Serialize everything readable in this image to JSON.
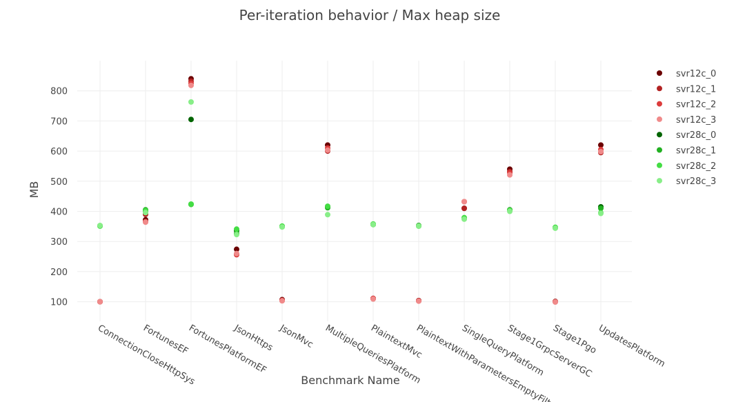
{
  "chart_data": {
    "type": "scatter",
    "title": "Per-iteration behavior / Max heap size",
    "xlabel": "Benchmark Name",
    "ylabel": "MB",
    "ylim": [
      35,
      900
    ],
    "yticks": [
      100,
      200,
      300,
      400,
      500,
      600,
      700,
      800
    ],
    "categories": [
      "ConnectionCloseHttpSys",
      "FortunesEF",
      "FortunesPlatformEF",
      "JsonHttps",
      "JsonMvc",
      "MultipleQueriesPlatform",
      "PlaintextMvc",
      "PlaintextWithParametersEmptyFilter",
      "SingleQueryPlatform",
      "Stage1GrpcServerGC",
      "Stage1Pgo",
      "UpdatesPlatform"
    ],
    "grid": true,
    "legend_position": "top-right",
    "series": [
      {
        "name": "svr12c_0",
        "color": "#6b0000",
        "values": [
          100,
          372,
          840,
          274,
          107,
          620,
          111,
          104,
          410,
          540,
          101,
          620
        ]
      },
      {
        "name": "svr12c_1",
        "color": "#b22222",
        "values": [
          100,
          390,
          832,
          258,
          105,
          600,
          110,
          103,
          410,
          532,
          100,
          595
        ]
      },
      {
        "name": "svr12c_2",
        "color": "#dc3c3c",
        "values": [
          100,
          366,
          825,
          256,
          104,
          610,
          111,
          103,
          432,
          528,
          100,
          605
        ]
      },
      {
        "name": "svr12c_3",
        "color": "#f08a8a",
        "values": [
          100,
          364,
          818,
          260,
          103,
          603,
          109,
          102,
          432,
          521,
          99,
          598
        ]
      },
      {
        "name": "svr28c_0",
        "color": "#006400",
        "values": [
          352,
          400,
          705,
          336,
          350,
          415,
          357,
          353,
          376,
          405,
          346,
          415
        ]
      },
      {
        "name": "svr28c_1",
        "color": "#22b022",
        "values": [
          352,
          405,
          423,
          326,
          349,
          412,
          356,
          351,
          378,
          403,
          345,
          410
        ]
      },
      {
        "name": "svr28c_2",
        "color": "#44dd44",
        "values": [
          351,
          402,
          424,
          341,
          351,
          417,
          358,
          352,
          379,
          404,
          347,
          395
        ]
      },
      {
        "name": "svr28c_3",
        "color": "#88ee88",
        "values": [
          353,
          396,
          763,
          323,
          348,
          389,
          356,
          351,
          374,
          400,
          344,
          393
        ]
      }
    ]
  }
}
